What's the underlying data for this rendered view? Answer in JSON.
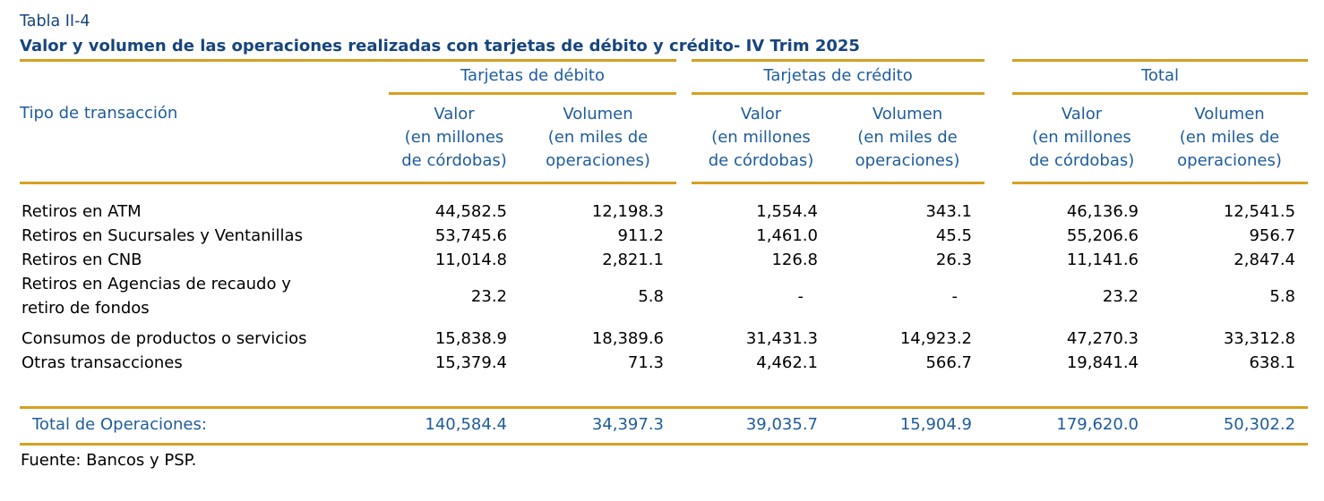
{
  "page": {
    "table_label": "Tabla II-4",
    "title": "Valor y volumen de las operaciones realizadas con tarjetas de débito y crédito- IV Trim 2025",
    "footer": "Fuente: Bancos y PSP."
  },
  "header": {
    "row_label": "Tipo de transacción",
    "groups": [
      "Tarjetas de débito",
      "Tarjetas de crédito",
      "Total"
    ],
    "valor": "Valor\n(en millones\nde córdobas)",
    "volumen": "Volumen\n(en miles de\noperaciones)"
  },
  "rows": [
    {
      "label": "Retiros en ATM",
      "values": [
        "44,582.5",
        "12,198.3",
        "1,554.4",
        "343.1",
        "46,136.9",
        "12,541.5"
      ]
    },
    {
      "label": "Retiros en Sucursales y Ventanillas",
      "values": [
        "53,745.6",
        "911.2",
        "1,461.0",
        "45.5",
        "55,206.6",
        "956.7"
      ]
    },
    {
      "label": "Retiros en CNB",
      "values": [
        "11,014.8",
        "2,821.1",
        "126.8",
        "26.3",
        "11,141.6",
        "2,847.4"
      ]
    },
    {
      "label": "Retiros en Agencias de recaudo y\nretiro de fondos",
      "values": [
        "23.2",
        "5.8",
        "-",
        "-",
        "23.2",
        "5.8"
      ]
    },
    {
      "label": "Consumos de productos o servicios",
      "values": [
        "15,838.9",
        "18,389.6",
        "31,431.3",
        "14,923.2",
        "47,270.3",
        "33,312.8"
      ]
    },
    {
      "label": "Otras transacciones",
      "values": [
        "15,379.4",
        "71.3",
        "4,462.1",
        "566.7",
        "19,841.4",
        "638.1"
      ]
    }
  ],
  "total": {
    "label": "Total de Operaciones:",
    "values": [
      "140,584.4",
      "34,397.3",
      "39,035.7",
      "15,904.9",
      "179,620.0",
      "50,302.2"
    ]
  },
  "colors": {
    "blue_text": "#1E5C9E",
    "title_blue": "#17457E",
    "gold_line": "#D7A021",
    "data_text": "#000000",
    "background": "#FFFFFF"
  }
}
